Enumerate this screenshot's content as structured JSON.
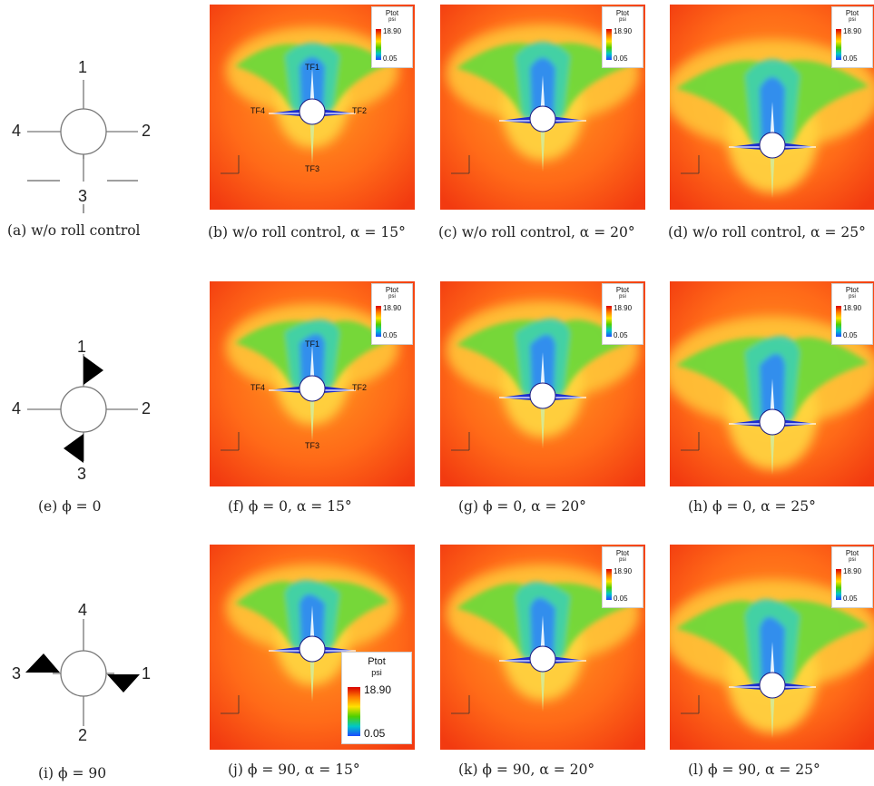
{
  "legend": {
    "title": "Ptot",
    "unit": "psi",
    "max": "18.90",
    "min": "0.05"
  },
  "rows": [
    {
      "diagram": {
        "top": "1",
        "right": "2",
        "bottom": "3",
        "left": "4",
        "caption": "(a) w/o roll control"
      },
      "panels": [
        {
          "caption": "(b) w/o roll control, α = 15°",
          "labels": {
            "tf1": "TF1",
            "tf2": "TF2",
            "tf3": "TF3",
            "tf4": "TF4"
          }
        },
        {
          "caption": "(c) w/o roll control, α = 20°"
        },
        {
          "caption": "(d) w/o roll control, α = 25°"
        }
      ]
    },
    {
      "diagram": {
        "top": "1",
        "right": "2",
        "bottom": "3",
        "left": "4",
        "caption": "(e) ϕ = 0"
      },
      "panels": [
        {
          "caption": "(f) ϕ = 0, α = 15°",
          "labels": {
            "tf1": "TF1",
            "tf2": "TF2",
            "tf3": "TF3",
            "tf4": "TF4"
          }
        },
        {
          "caption": "(g) ϕ = 0, α = 20°"
        },
        {
          "caption": "(h) ϕ = 0, α = 25°"
        }
      ]
    },
    {
      "diagram": {
        "top": "4",
        "right": "1",
        "bottom": "2",
        "left": "3",
        "caption": "(i) ϕ = 90"
      },
      "panels": [
        {
          "caption": "(j) ϕ = 90, α = 15°"
        },
        {
          "caption": "(k) ϕ = 90, α = 20°"
        },
        {
          "caption": "(l) ϕ = 90, α = 25°"
        }
      ]
    }
  ]
}
